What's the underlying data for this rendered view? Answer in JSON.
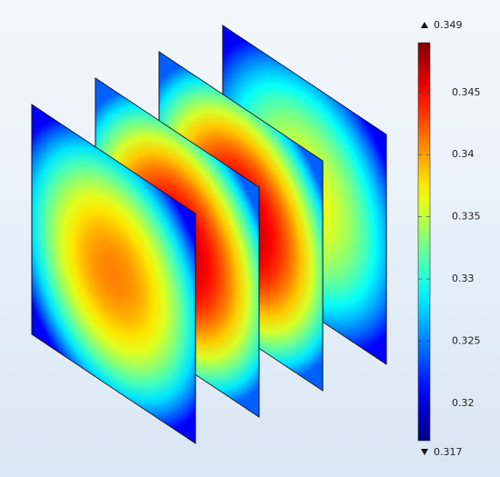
{
  "chart_data": {
    "type": "slice",
    "values": [
      0.341,
      0.347,
      0.347,
      0.337
    ],
    "edge_values": [
      0.321,
      0.324,
      0.324,
      0.321
    ],
    "zlim": [
      0.317,
      0.349
    ],
    "zticks": [
      0.32,
      0.325,
      0.33,
      0.335,
      0.34,
      0.345
    ]
  }
}
